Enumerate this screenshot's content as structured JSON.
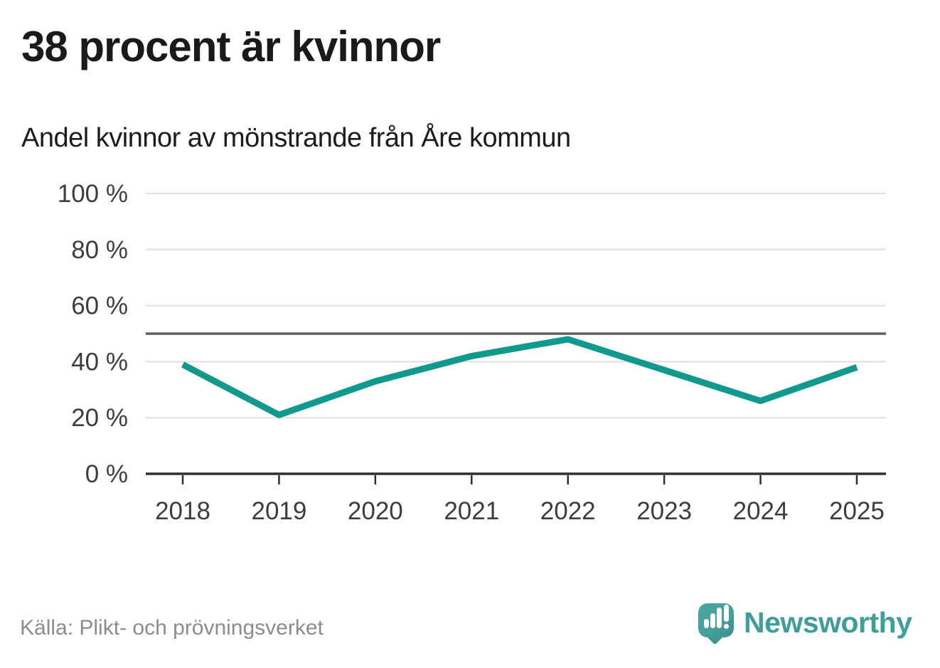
{
  "chart_data": {
    "type": "line",
    "title": "38 procent är kvinnor",
    "subtitle": "Andel kvinnor av mönstrande från Åre kommun",
    "x": [
      "2018",
      "2019",
      "2020",
      "2021",
      "2022",
      "2023",
      "2024",
      "2025"
    ],
    "series": [
      {
        "name": "Andel kvinnor av mönstrande",
        "values": [
          39,
          21,
          33,
          42,
          48,
          37,
          26,
          38
        ],
        "color": "#11998e"
      }
    ],
    "unit": "%",
    "xlabel": "",
    "ylabel": "",
    "ylim": [
      0,
      100
    ],
    "yticks": [
      0,
      20,
      40,
      60,
      80,
      100
    ],
    "ytick_suffix": " %",
    "grid": true,
    "legend": "none",
    "reference_line": {
      "value": 50,
      "color": "#606060"
    },
    "colors": {
      "line": "#11998e",
      "gridline": "#e0e0e0",
      "axis": "#2f2f2f",
      "tick_text": "#3d3d3d"
    }
  },
  "footer": {
    "source": "Källa: Plikt- och prövningsverket",
    "brand": "Newsworthy",
    "brand_color": "#3f9d9a"
  }
}
